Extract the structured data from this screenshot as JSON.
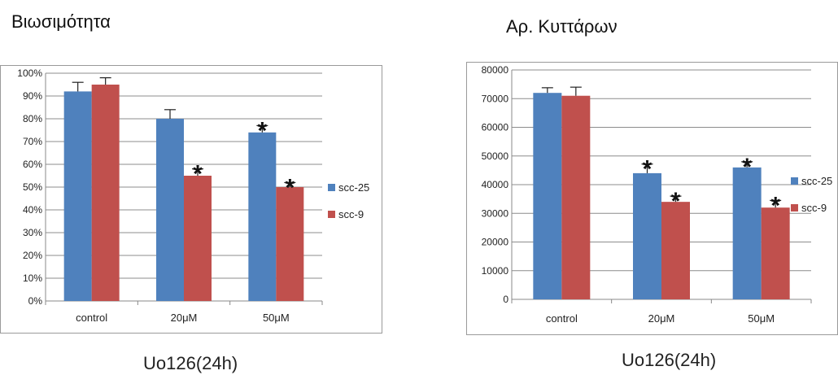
{
  "chart_data": [
    {
      "type": "bar",
      "title": "Βιωσιμότητα",
      "xlabel": "Uo126(24h)",
      "ylabel": "",
      "categories": [
        "control",
        "20μM",
        "50μM"
      ],
      "yticks": [
        "0%",
        "10%",
        "20%",
        "30%",
        "40%",
        "50%",
        "60%",
        "70%",
        "80%",
        "90%",
        "100%"
      ],
      "ylim": [
        0,
        100
      ],
      "grid": true,
      "legend_position": "right",
      "series": [
        {
          "name": "scc-25",
          "color": "#4f81bd",
          "values": [
            92,
            80,
            74
          ],
          "errors": [
            4,
            4,
            3
          ],
          "significant": [
            false,
            false,
            true
          ]
        },
        {
          "name": "scc-9",
          "color": "#c0504d",
          "values": [
            95,
            55,
            50
          ],
          "errors": [
            3,
            3,
            2
          ],
          "significant": [
            false,
            true,
            true
          ]
        }
      ],
      "annotation_symbol": "*"
    },
    {
      "type": "bar",
      "title": "Αρ. Κυττάρων",
      "xlabel": "Uo126(24h)",
      "ylabel": "",
      "categories": [
        "control",
        "20μM",
        "50μM"
      ],
      "yticks": [
        "0",
        "10000",
        "20000",
        "30000",
        "40000",
        "50000",
        "60000",
        "70000",
        "80000"
      ],
      "ylim": [
        0,
        80000
      ],
      "grid": true,
      "legend_position": "right",
      "series": [
        {
          "name": "scc-25",
          "color": "#4f81bd",
          "values": [
            72000,
            44000,
            46000
          ],
          "errors": [
            1800,
            3200,
            2000
          ],
          "significant": [
            false,
            true,
            true
          ]
        },
        {
          "name": "scc-9",
          "color": "#c0504d",
          "values": [
            71000,
            34000,
            32000
          ],
          "errors": [
            3000,
            2000,
            2500
          ],
          "significant": [
            false,
            true,
            true
          ]
        }
      ],
      "annotation_symbol": "*"
    }
  ]
}
